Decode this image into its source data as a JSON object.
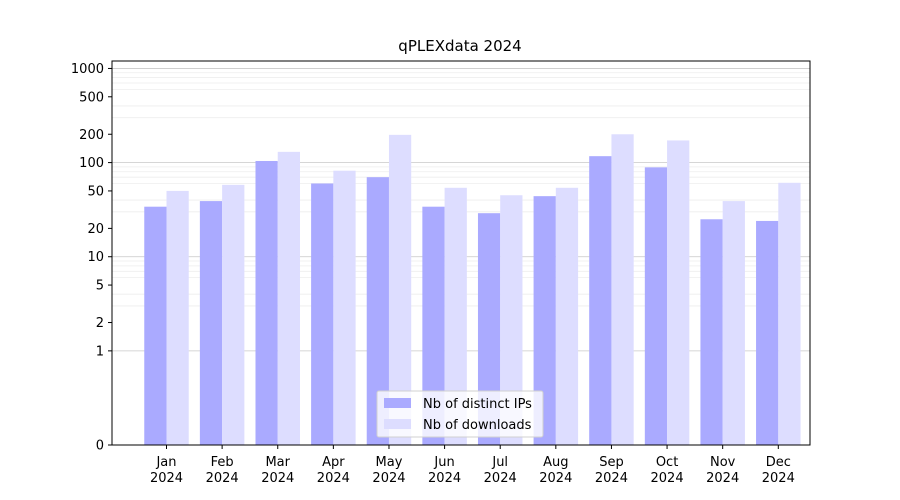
{
  "chart_data": {
    "type": "bar",
    "title": "qPLEXdata 2024",
    "scale": "symlog",
    "yticks": [
      0,
      1,
      2,
      5,
      10,
      20,
      50,
      100,
      200,
      500,
      1000
    ],
    "grid": true,
    "legend_position": "bottom-center",
    "categories": [
      [
        "Jan",
        "2024"
      ],
      [
        "Feb",
        "2024"
      ],
      [
        "Mar",
        "2024"
      ],
      [
        "Apr",
        "2024"
      ],
      [
        "May",
        "2024"
      ],
      [
        "Jun",
        "2024"
      ],
      [
        "Jul",
        "2024"
      ],
      [
        "Aug",
        "2024"
      ],
      [
        "Sep",
        "2024"
      ],
      [
        "Oct",
        "2024"
      ],
      [
        "Nov",
        "2024"
      ],
      [
        "Dec",
        "2024"
      ]
    ],
    "series": [
      {
        "name": "Nb of distinct IPs",
        "color": "#aaaaff",
        "values": [
          34,
          39,
          104,
          60,
          70,
          34,
          29,
          44,
          117,
          89,
          25,
          24
        ]
      },
      {
        "name": "Nb of downloads",
        "color": "#ddddff",
        "values": [
          50,
          58,
          130,
          82,
          197,
          54,
          45,
          54,
          200,
          172,
          39,
          61
        ]
      }
    ]
  }
}
